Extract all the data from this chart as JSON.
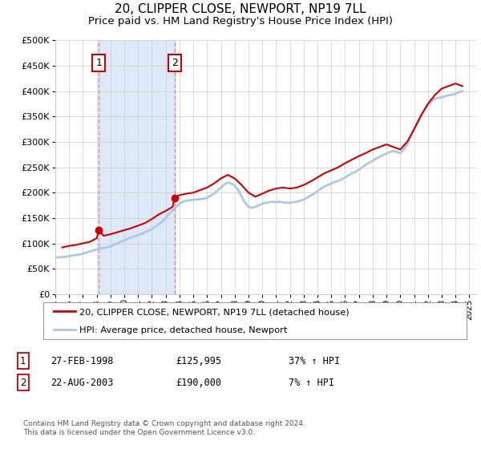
{
  "title": "20, CLIPPER CLOSE, NEWPORT, NP19 7LL",
  "subtitle": "Price paid vs. HM Land Registry's House Price Index (HPI)",
  "title_fontsize": 11,
  "subtitle_fontsize": 9.5,
  "ylim": [
    0,
    500000
  ],
  "yticks": [
    0,
    50000,
    100000,
    150000,
    200000,
    250000,
    300000,
    350000,
    400000,
    450000,
    500000
  ],
  "ytick_labels": [
    "£0",
    "£50K",
    "£100K",
    "£150K",
    "£200K",
    "£250K",
    "£300K",
    "£350K",
    "£400K",
    "£450K",
    "£500K"
  ],
  "xlim_start": 1995.0,
  "xlim_end": 2025.5,
  "xtick_years": [
    1995,
    1996,
    1997,
    1998,
    1999,
    2000,
    2001,
    2002,
    2003,
    2004,
    2005,
    2006,
    2007,
    2008,
    2009,
    2010,
    2011,
    2012,
    2013,
    2014,
    2015,
    2016,
    2017,
    2018,
    2019,
    2020,
    2021,
    2022,
    2023,
    2024,
    2025
  ],
  "hpi_color": "#aec6e8",
  "price_color": "#cc0000",
  "bg_color": "#ffffff",
  "grid_color": "#cccccc",
  "shade_color": "#d6e4f7",
  "purchase1_year": 1998.16,
  "purchase1_price": 125995,
  "purchase2_year": 2003.64,
  "purchase2_price": 190000,
  "legend_label1": "20, CLIPPER CLOSE, NEWPORT, NP19 7LL (detached house)",
  "legend_label2": "HPI: Average price, detached house, Newport",
  "table_rows": [
    {
      "num": "1",
      "date": "27-FEB-1998",
      "price": "£125,995",
      "hpi": "37% ↑ HPI"
    },
    {
      "num": "2",
      "date": "22-AUG-2003",
      "price": "£190,000",
      "hpi": "7% ↑ HPI"
    }
  ],
  "footnote": "Contains HM Land Registry data © Crown copyright and database right 2024.\nThis data is licensed under the Open Government Licence v3.0.",
  "hpi_data_x": [
    1995.0,
    1995.25,
    1995.5,
    1995.75,
    1996.0,
    1996.25,
    1996.5,
    1996.75,
    1997.0,
    1997.25,
    1997.5,
    1997.75,
    1998.0,
    1998.25,
    1998.5,
    1998.75,
    1999.0,
    1999.25,
    1999.5,
    1999.75,
    2000.0,
    2000.25,
    2000.5,
    2000.75,
    2001.0,
    2001.25,
    2001.5,
    2001.75,
    2002.0,
    2002.25,
    2002.5,
    2002.75,
    2003.0,
    2003.25,
    2003.5,
    2003.75,
    2004.0,
    2004.25,
    2004.5,
    2004.75,
    2005.0,
    2005.25,
    2005.5,
    2005.75,
    2006.0,
    2006.25,
    2006.5,
    2006.75,
    2007.0,
    2007.25,
    2007.5,
    2007.75,
    2008.0,
    2008.25,
    2008.5,
    2008.75,
    2009.0,
    2009.25,
    2009.5,
    2009.75,
    2010.0,
    2010.25,
    2010.5,
    2010.75,
    2011.0,
    2011.25,
    2011.5,
    2011.75,
    2012.0,
    2012.25,
    2012.5,
    2012.75,
    2013.0,
    2013.25,
    2013.5,
    2013.75,
    2014.0,
    2014.25,
    2014.5,
    2014.75,
    2015.0,
    2015.25,
    2015.5,
    2015.75,
    2016.0,
    2016.25,
    2016.5,
    2016.75,
    2017.0,
    2017.25,
    2017.5,
    2017.75,
    2018.0,
    2018.25,
    2018.5,
    2018.75,
    2019.0,
    2019.25,
    2019.5,
    2019.75,
    2020.0,
    2020.25,
    2020.5,
    2020.75,
    2021.0,
    2021.25,
    2021.5,
    2021.75,
    2022.0,
    2022.25,
    2022.5,
    2022.75,
    2023.0,
    2023.25,
    2023.5,
    2023.75,
    2024.0,
    2024.25,
    2024.5
  ],
  "hpi_data_y": [
    72000,
    72500,
    73000,
    73500,
    75000,
    76000,
    77000,
    78000,
    80000,
    82000,
    84000,
    86000,
    88000,
    90000,
    91000,
    92000,
    94000,
    97000,
    100000,
    103000,
    106000,
    109000,
    112000,
    114000,
    116000,
    119000,
    122000,
    125000,
    128000,
    133000,
    138000,
    143000,
    150000,
    158000,
    165000,
    172000,
    178000,
    182000,
    184000,
    185000,
    186000,
    186500,
    187000,
    188000,
    190000,
    194000,
    198000,
    204000,
    210000,
    216000,
    220000,
    218000,
    214000,
    205000,
    192000,
    180000,
    172000,
    170000,
    172000,
    175000,
    178000,
    180000,
    181000,
    182000,
    181000,
    182000,
    181000,
    180000,
    180000,
    181000,
    182000,
    184000,
    186000,
    190000,
    194000,
    198000,
    203000,
    208000,
    212000,
    215000,
    218000,
    221000,
    223000,
    226000,
    230000,
    234000,
    238000,
    241000,
    245000,
    250000,
    255000,
    259000,
    263000,
    267000,
    271000,
    274000,
    277000,
    280000,
    282000,
    280000,
    278000,
    285000,
    295000,
    310000,
    325000,
    338000,
    350000,
    362000,
    372000,
    380000,
    385000,
    387000,
    388000,
    390000,
    392000,
    393000,
    395000,
    398000,
    400000
  ],
  "price_data_x": [
    1995.5,
    1996.0,
    1996.5,
    1997.0,
    1997.5,
    1998.0,
    1998.16,
    1998.5,
    1999.0,
    1999.5,
    2000.0,
    2000.5,
    2001.0,
    2001.5,
    2002.0,
    2002.5,
    2003.0,
    2003.5,
    2003.64,
    2004.0,
    2004.5,
    2005.0,
    2005.5,
    2006.0,
    2006.5,
    2007.0,
    2007.5,
    2008.0,
    2008.5,
    2009.0,
    2009.5,
    2010.0,
    2010.5,
    2011.0,
    2011.5,
    2012.0,
    2012.5,
    2013.0,
    2013.5,
    2014.0,
    2014.5,
    2015.0,
    2015.5,
    2016.0,
    2016.5,
    2017.0,
    2017.5,
    2018.0,
    2018.5,
    2019.0,
    2019.5,
    2020.0,
    2020.5,
    2021.0,
    2021.5,
    2022.0,
    2022.5,
    2023.0,
    2023.5,
    2024.0,
    2024.5
  ],
  "price_data_y": [
    92000,
    95000,
    97000,
    100000,
    103000,
    110000,
    125995,
    115000,
    118000,
    122000,
    126000,
    130000,
    135000,
    140000,
    148000,
    157000,
    164000,
    172000,
    190000,
    195000,
    198000,
    200000,
    205000,
    210000,
    218000,
    228000,
    235000,
    228000,
    215000,
    200000,
    192000,
    198000,
    204000,
    208000,
    210000,
    208000,
    210000,
    215000,
    222000,
    230000,
    238000,
    244000,
    250000,
    258000,
    265000,
    272000,
    278000,
    285000,
    290000,
    295000,
    290000,
    285000,
    300000,
    325000,
    352000,
    375000,
    392000,
    405000,
    410000,
    415000,
    410000
  ]
}
